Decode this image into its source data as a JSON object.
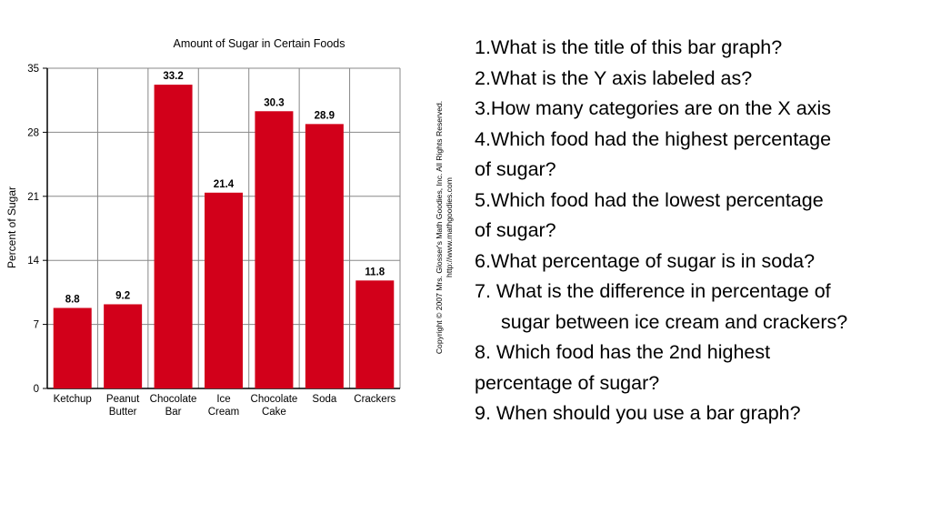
{
  "chart_data": {
    "type": "bar",
    "title": "Amount of Sugar in Certain Foods",
    "xlabel": "",
    "ylabel": "Percent of Sugar",
    "categories": [
      [
        "Ketchup"
      ],
      [
        "Peanut",
        "Butter"
      ],
      [
        "Chocolate",
        "Bar"
      ],
      [
        "Ice",
        "Cream"
      ],
      [
        "Chocolate",
        "Cake"
      ],
      [
        "Soda"
      ],
      [
        "Crackers"
      ]
    ],
    "values": [
      8.8,
      9.2,
      33.2,
      21.4,
      30.3,
      28.9,
      11.8
    ],
    "value_labels": [
      "8.8",
      "9.2",
      "33.2",
      "21.4",
      "30.3",
      "28.9",
      "11.8"
    ],
    "ylim": [
      0,
      35
    ],
    "yticks": [
      0,
      7,
      14,
      21,
      28,
      35
    ],
    "grid": true,
    "colors": {
      "bar": "#d2001a",
      "grid": "#888888",
      "axis": "#000000"
    }
  },
  "copyright": {
    "line1": "Copyright © 2007 Mrs. Glosser's Math Goodies, Inc. All Rights Reserved.",
    "line2": "http://www.mathgoodies.com"
  },
  "questions": [
    "1.What is the title of this bar graph?",
    "2.What is the Y axis labeled as?",
    "3.How many categories are on the X axis",
    "4.Which food had the highest percentage",
    "of sugar?",
    "5.Which food had the lowest percentage",
    "of sugar?",
    "6.What percentage of sugar is in soda?",
    "7. What is the difference in percentage of",
    "sugar between ice cream and crackers?",
    "8. Which food has the 2nd highest",
    "percentage of sugar?",
    "9. When should you use a bar graph?"
  ]
}
